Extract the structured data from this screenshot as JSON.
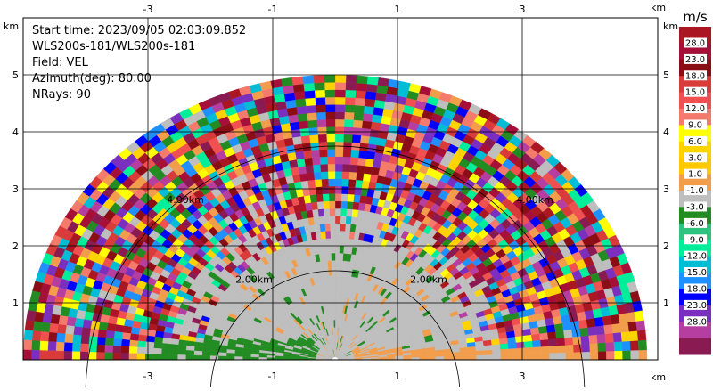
{
  "info": {
    "start_time": "Start time: 2023/09/05 02:03:09.852",
    "instrument": "WLS200s-181/WLS200s-181",
    "field": "Field: VEL",
    "azimuth": "Azimuth(deg): 80.00",
    "nrays": "NRays: 90"
  },
  "chart_data": {
    "type": "heatmap",
    "subtype": "rhi-polar-scan",
    "x_unit": "km",
    "y_unit": "km",
    "x_ticks": [
      -3,
      -1,
      1,
      3
    ],
    "y_ticks": [
      1,
      2,
      3,
      4,
      5
    ],
    "xlim": [
      -5.0,
      5.0
    ],
    "ylim": [
      0,
      5.8
    ],
    "max_range_km": 5.0,
    "range_rings": [
      {
        "label": "2.00km",
        "radius_km": 2.0
      },
      {
        "label": "4.00km",
        "radius_km": 4.0
      }
    ],
    "grid": true,
    "colorbar": {
      "unit": "m/s",
      "labels": [
        "28.0",
        "23.0",
        "18.0",
        "15.0",
        "12.0",
        "9.0",
        "6.0",
        "3.0",
        "1.0",
        "-1.0",
        "-3.0",
        "-6.0",
        "-9.0",
        "-12.0",
        "-15.0",
        "-18.0",
        "-23.0",
        "-28.0"
      ],
      "colors": [
        "#aa1722",
        "#a50f38",
        "#8b0d15",
        "#d93a3a",
        "#f0504f",
        "#f47a6c",
        "#ffff00",
        "#ffd300",
        "#ffc800",
        "#f29d4c",
        "#bebebe",
        "#228b22",
        "#2ec27e",
        "#00ee9a",
        "#00bcd4",
        "#1e90ff",
        "#0000ff",
        "#7b2fbe",
        "#b53ea0",
        "#8a1a52"
      ]
    }
  }
}
